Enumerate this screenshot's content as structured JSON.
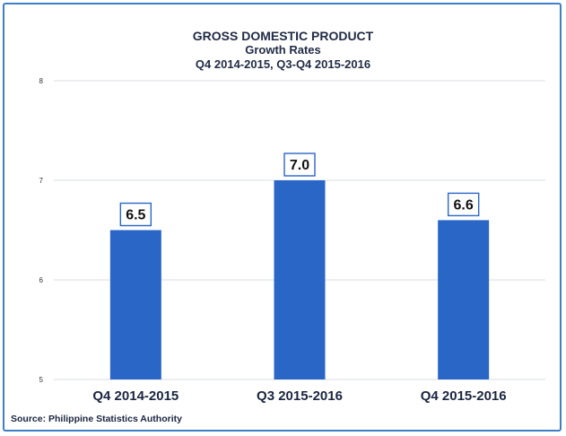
{
  "chart_data": {
    "type": "bar",
    "title": "GROSS DOMESTIC PRODUCT",
    "subtitle_lines": [
      "Growth Rates",
      "Q4 2014-2015, Q3-Q4 2015-2016"
    ],
    "categories": [
      "Q4 2014-2015",
      "Q3 2015-2016",
      "Q4 2015-2016"
    ],
    "values": [
      6.5,
      7.0,
      6.6
    ],
    "data_labels": [
      "6.5",
      "7.0",
      "6.6"
    ],
    "ylim": [
      5,
      8
    ],
    "yticks": [
      5,
      6,
      7,
      8
    ],
    "xlabel": "",
    "ylabel": "",
    "grid": true,
    "bar_color": "#2a66c6"
  },
  "source": "Source: Philippine Statistics Authority"
}
